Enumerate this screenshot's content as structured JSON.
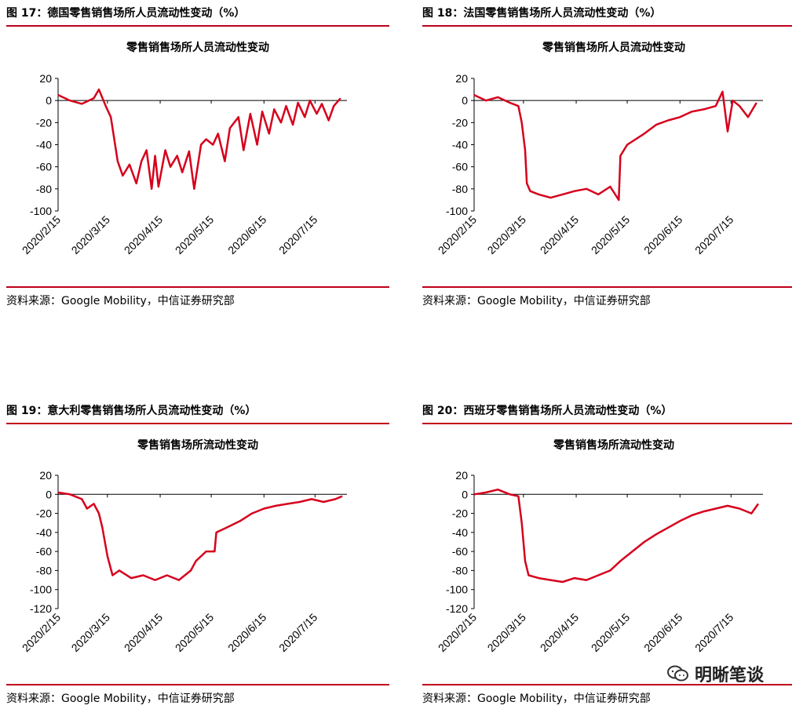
{
  "source": "资料来源：Google Mobility，中信证券研究部",
  "watermark": "明晰笔谈",
  "colors": {
    "accent": "#c0001b",
    "line": "#d6001c"
  },
  "chart_data": [
    {
      "type": "line",
      "figure_label": "图 17：德国零售销售场所人员流动性变动（%）",
      "title": "零售销售场所人员流动性变动",
      "x_ticks": [
        "2020/2/15",
        "2020/3/15",
        "2020/4/15",
        "2020/5/15",
        "2020/6/15",
        "2020/7/15"
      ],
      "ylim": [
        -100,
        20
      ],
      "y_ticks": [
        20,
        0,
        -20,
        -40,
        -60,
        -80,
        -100
      ],
      "x": [
        "2020-02-15",
        "2020-02-22",
        "2020-02-29",
        "2020-03-07",
        "2020-03-10",
        "2020-03-14",
        "2020-03-17",
        "2020-03-21",
        "2020-03-24",
        "2020-03-28",
        "2020-04-01",
        "2020-04-04",
        "2020-04-07",
        "2020-04-10",
        "2020-04-12",
        "2020-04-14",
        "2020-04-18",
        "2020-04-21",
        "2020-04-25",
        "2020-04-28",
        "2020-05-02",
        "2020-05-05",
        "2020-05-09",
        "2020-05-12",
        "2020-05-16",
        "2020-05-19",
        "2020-05-23",
        "2020-05-26",
        "2020-05-31",
        "2020-06-03",
        "2020-06-07",
        "2020-06-11",
        "2020-06-14",
        "2020-06-18",
        "2020-06-21",
        "2020-06-25",
        "2020-06-28",
        "2020-07-02",
        "2020-07-05",
        "2020-07-09",
        "2020-07-12",
        "2020-07-16",
        "2020-07-19",
        "2020-07-23",
        "2020-07-26",
        "2020-07-30"
      ],
      "values": [
        5,
        0,
        -3,
        2,
        10,
        -5,
        -15,
        -55,
        -68,
        -58,
        -75,
        -55,
        -45,
        -80,
        -50,
        -78,
        -45,
        -60,
        -50,
        -65,
        -46,
        -80,
        -40,
        -35,
        -40,
        -30,
        -55,
        -25,
        -15,
        -45,
        -12,
        -40,
        -10,
        -30,
        -8,
        -20,
        -5,
        -22,
        -2,
        -15,
        0,
        -12,
        -3,
        -18,
        -5,
        2
      ]
    },
    {
      "type": "line",
      "figure_label": "图 18：法国零售销售场所人员流动性变动（%）",
      "title": "零售销售场所人员流动性变动",
      "x_ticks": [
        "2020/2/15",
        "2020/3/15",
        "2020/4/15",
        "2020/5/15",
        "2020/6/15",
        "2020/7/15"
      ],
      "ylim": [
        -100,
        20
      ],
      "y_ticks": [
        20,
        0,
        -20,
        -40,
        -60,
        -80,
        -100
      ],
      "x": [
        "2020-02-15",
        "2020-02-22",
        "2020-02-29",
        "2020-03-07",
        "2020-03-12",
        "2020-03-14",
        "2020-03-16",
        "2020-03-17",
        "2020-03-19",
        "2020-03-24",
        "2020-03-31",
        "2020-04-07",
        "2020-04-14",
        "2020-04-21",
        "2020-04-28",
        "2020-05-05",
        "2020-05-10",
        "2020-05-11",
        "2020-05-15",
        "2020-05-20",
        "2020-05-25",
        "2020-06-01",
        "2020-06-08",
        "2020-06-15",
        "2020-06-22",
        "2020-06-29",
        "2020-07-06",
        "2020-07-10",
        "2020-07-13",
        "2020-07-16",
        "2020-07-20",
        "2020-07-25",
        "2020-07-30"
      ],
      "values": [
        5,
        0,
        3,
        -2,
        -5,
        -20,
        -45,
        -75,
        -82,
        -85,
        -88,
        -85,
        -82,
        -80,
        -85,
        -78,
        -90,
        -50,
        -40,
        -35,
        -30,
        -22,
        -18,
        -15,
        -10,
        -8,
        -5,
        8,
        -28,
        0,
        -5,
        -15,
        -2
      ]
    },
    {
      "type": "line",
      "figure_label": "图 19：意大利零售销售场所人员流动性变动（%）",
      "title": "零售销售场所流动性变动",
      "x_ticks": [
        "2020/2/15",
        "2020/3/15",
        "2020/4/15",
        "2020/5/15",
        "2020/6/15",
        "2020/7/15"
      ],
      "ylim": [
        -120,
        20
      ],
      "y_ticks": [
        20,
        0,
        -20,
        -40,
        -60,
        -80,
        -100,
        -120
      ],
      "x": [
        "2020-02-15",
        "2020-02-22",
        "2020-02-29",
        "2020-03-03",
        "2020-03-07",
        "2020-03-10",
        "2020-03-12",
        "2020-03-15",
        "2020-03-18",
        "2020-03-22",
        "2020-03-29",
        "2020-04-05",
        "2020-04-12",
        "2020-04-19",
        "2020-04-26",
        "2020-05-03",
        "2020-05-06",
        "2020-05-12",
        "2020-05-17",
        "2020-05-18",
        "2020-05-24",
        "2020-06-01",
        "2020-06-08",
        "2020-06-15",
        "2020-06-22",
        "2020-06-29",
        "2020-07-06",
        "2020-07-13",
        "2020-07-20",
        "2020-07-27",
        "2020-07-31"
      ],
      "values": [
        2,
        0,
        -5,
        -15,
        -10,
        -20,
        -35,
        -65,
        -85,
        -80,
        -88,
        -85,
        -90,
        -85,
        -90,
        -80,
        -70,
        -60,
        -60,
        -40,
        -35,
        -28,
        -20,
        -15,
        -12,
        -10,
        -8,
        -5,
        -8,
        -5,
        -2
      ]
    },
    {
      "type": "line",
      "figure_label": "图 20：西班牙零售销售场所人员流动性变动（%）",
      "title": "零售销售场所流动性变动",
      "x_ticks": [
        "2020/2/15",
        "2020/3/15",
        "2020/4/15",
        "2020/5/15",
        "2020/6/15",
        "2020/7/15"
      ],
      "ylim": [
        -120,
        20
      ],
      "y_ticks": [
        20,
        0,
        -20,
        -40,
        -60,
        -80,
        -100,
        -120
      ],
      "x": [
        "2020-02-15",
        "2020-02-22",
        "2020-02-29",
        "2020-03-07",
        "2020-03-12",
        "2020-03-14",
        "2020-03-16",
        "2020-03-18",
        "2020-03-24",
        "2020-03-31",
        "2020-04-07",
        "2020-04-14",
        "2020-04-21",
        "2020-04-28",
        "2020-05-05",
        "2020-05-11",
        "2020-05-18",
        "2020-05-25",
        "2020-06-01",
        "2020-06-08",
        "2020-06-15",
        "2020-06-22",
        "2020-06-29",
        "2020-07-06",
        "2020-07-13",
        "2020-07-20",
        "2020-07-27",
        "2020-07-31"
      ],
      "values": [
        0,
        2,
        5,
        0,
        -2,
        -30,
        -70,
        -85,
        -88,
        -90,
        -92,
        -88,
        -90,
        -85,
        -80,
        -70,
        -60,
        -50,
        -42,
        -35,
        -28,
        -22,
        -18,
        -15,
        -12,
        -15,
        -20,
        -10
      ]
    }
  ]
}
